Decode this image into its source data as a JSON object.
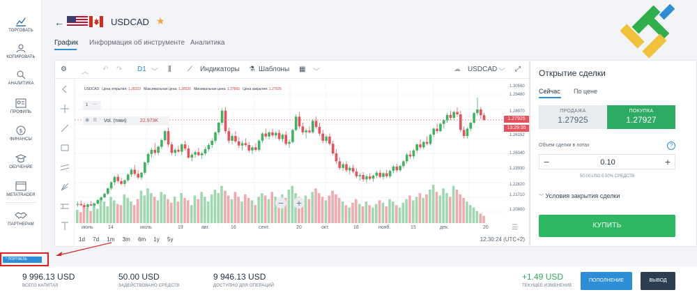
{
  "sidebar": {
    "items": [
      {
        "label": "ТОРГОВАТЬ",
        "icon": "chart-icon"
      },
      {
        "label": "КОПИРОВАТЬ",
        "icon": "copy-users-icon"
      },
      {
        "label": "АНАЛИТИКА",
        "icon": "analytics-icon"
      },
      {
        "label": "ПРОФИЛЬ",
        "icon": "profile-icon"
      },
      {
        "label": "ФИНАНСЫ",
        "icon": "dollar-icon"
      },
      {
        "label": "ОБУЧЕНИЕ",
        "icon": "graduation-icon"
      },
      {
        "label": "METATRADER",
        "icon": "window-icon"
      },
      {
        "label": "ПАРТНЕРАМ",
        "icon": "handshake-icon"
      }
    ]
  },
  "header": {
    "symbol": "USDCAD",
    "tabs": [
      "График",
      "Информация об инструменте",
      "Аналитика"
    ]
  },
  "toolbar": {
    "timeframe": "D1",
    "indicators": "Индикаторы",
    "templates": "Шаблоны",
    "symbol": "USDCAD"
  },
  "chart_info": {
    "symbol": "USDCAD",
    "open_label": "Цена открытия:",
    "open": "1.28323",
    "high_label": "Максимальная цена:",
    "high": "1.28526",
    "low_label": "Минимальная цена:",
    "low": "1.27865",
    "close_label": "Цена закрытия:",
    "close": "1.27925",
    "one": "1",
    "vol_label": "Vol. (тики)",
    "vol_value": "22.973K",
    "price_box": "1.27925",
    "time_box": "13:29:35"
  },
  "periods": [
    "1d",
    "7d",
    "1m",
    "3m",
    "6m",
    "1y",
    "5y"
  ],
  "chart_time": "12:30:24 (UTC+2)",
  "chart_data": {
    "type": "candlestick",
    "y_ticks": [
      "1.30590",
      "1.29480",
      "1.28970",
      "1.27925",
      "1.26152",
      "1.25040",
      "1.23930",
      "1.22820",
      "1.21710",
      "1.20800"
    ],
    "x_ticks": [
      "июнь",
      "14",
      "июль",
      "19",
      "авг.",
      "16",
      "сент.",
      "20",
      "окт.",
      "18",
      "нояб.",
      "15",
      "дек.",
      "20"
    ],
    "ylim": [
      1.2,
      1.31
    ],
    "candles": [
      {
        "o": 1.2088,
        "h": 1.2115,
        "l": 1.2072,
        "c": 1.2095
      },
      {
        "o": 1.2095,
        "h": 1.2125,
        "l": 1.208,
        "c": 1.2085
      },
      {
        "o": 1.2085,
        "h": 1.2105,
        "l": 1.206,
        "c": 1.207
      },
      {
        "o": 1.207,
        "h": 1.2098,
        "l": 1.2058,
        "c": 1.2092
      },
      {
        "o": 1.2092,
        "h": 1.212,
        "l": 1.2078,
        "c": 1.2082
      },
      {
        "o": 1.2082,
        "h": 1.21,
        "l": 1.2068,
        "c": 1.2098
      },
      {
        "o": 1.2098,
        "h": 1.2135,
        "l": 1.209,
        "c": 1.2128
      },
      {
        "o": 1.2128,
        "h": 1.216,
        "l": 1.2115,
        "c": 1.215
      },
      {
        "o": 1.215,
        "h": 1.219,
        "l": 1.214,
        "c": 1.218
      },
      {
        "o": 1.218,
        "h": 1.223,
        "l": 1.217,
        "c": 1.2225
      },
      {
        "o": 1.2225,
        "h": 1.2285,
        "l": 1.221,
        "c": 1.2275
      },
      {
        "o": 1.2275,
        "h": 1.233,
        "l": 1.225,
        "c": 1.232
      },
      {
        "o": 1.232,
        "h": 1.2345,
        "l": 1.227,
        "c": 1.2285
      },
      {
        "o": 1.2285,
        "h": 1.231,
        "l": 1.225,
        "c": 1.2262
      },
      {
        "o": 1.2262,
        "h": 1.23,
        "l": 1.224,
        "c": 1.2292
      },
      {
        "o": 1.2292,
        "h": 1.235,
        "l": 1.228,
        "c": 1.234
      },
      {
        "o": 1.234,
        "h": 1.239,
        "l": 1.232,
        "c": 1.238
      },
      {
        "o": 1.238,
        "h": 1.242,
        "l": 1.233,
        "c": 1.2345
      },
      {
        "o": 1.2345,
        "h": 1.2375,
        "l": 1.23,
        "c": 1.2315
      },
      {
        "o": 1.2315,
        "h": 1.236,
        "l": 1.2295,
        "c": 1.2355
      },
      {
        "o": 1.2355,
        "h": 1.245,
        "l": 1.234,
        "c": 1.244
      },
      {
        "o": 1.244,
        "h": 1.252,
        "l": 1.242,
        "c": 1.251
      },
      {
        "o": 1.251,
        "h": 1.256,
        "l": 1.248,
        "c": 1.2545
      },
      {
        "o": 1.2545,
        "h": 1.26,
        "l": 1.25,
        "c": 1.252
      },
      {
        "o": 1.252,
        "h": 1.258,
        "l": 1.25,
        "c": 1.257
      },
      {
        "o": 1.257,
        "h": 1.264,
        "l": 1.255,
        "c": 1.2625
      },
      {
        "o": 1.2625,
        "h": 1.271,
        "l": 1.261,
        "c": 1.27
      },
      {
        "o": 1.27,
        "h": 1.273,
        "l": 1.257,
        "c": 1.259
      },
      {
        "o": 1.259,
        "h": 1.261,
        "l": 1.25,
        "c": 1.252
      },
      {
        "o": 1.252,
        "h": 1.256,
        "l": 1.249,
        "c": 1.2545
      },
      {
        "o": 1.2545,
        "h": 1.258,
        "l": 1.252,
        "c": 1.253
      },
      {
        "o": 1.253,
        "h": 1.26,
        "l": 1.25,
        "c": 1.259
      },
      {
        "o": 1.259,
        "h": 1.262,
        "l": 1.254,
        "c": 1.2555
      },
      {
        "o": 1.2555,
        "h": 1.258,
        "l": 1.247,
        "c": 1.248
      },
      {
        "o": 1.248,
        "h": 1.252,
        "l": 1.245,
        "c": 1.2505
      },
      {
        "o": 1.2505,
        "h": 1.254,
        "l": 1.248,
        "c": 1.2525
      },
      {
        "o": 1.2525,
        "h": 1.256,
        "l": 1.249,
        "c": 1.25
      },
      {
        "o": 1.25,
        "h": 1.253,
        "l": 1.247,
        "c": 1.2515
      },
      {
        "o": 1.2515,
        "h": 1.2565,
        "l": 1.25,
        "c": 1.255
      },
      {
        "o": 1.255,
        "h": 1.26,
        "l": 1.253,
        "c": 1.2585
      },
      {
        "o": 1.2585,
        "h": 1.264,
        "l": 1.256,
        "c": 1.262
      },
      {
        "o": 1.262,
        "h": 1.27,
        "l": 1.26,
        "c": 1.269
      },
      {
        "o": 1.269,
        "h": 1.278,
        "l": 1.267,
        "c": 1.277
      },
      {
        "o": 1.277,
        "h": 1.289,
        "l": 1.275,
        "c": 1.287
      },
      {
        "o": 1.287,
        "h": 1.29,
        "l": 1.268,
        "c": 1.27
      },
      {
        "o": 1.27,
        "h": 1.273,
        "l": 1.26,
        "c": 1.262
      },
      {
        "o": 1.262,
        "h": 1.268,
        "l": 1.259,
        "c": 1.266
      },
      {
        "o": 1.266,
        "h": 1.27,
        "l": 1.26,
        "c": 1.2615
      },
      {
        "o": 1.2615,
        "h": 1.265,
        "l": 1.256,
        "c": 1.258
      },
      {
        "o": 1.258,
        "h": 1.262,
        "l": 1.254,
        "c": 1.26
      },
      {
        "o": 1.26,
        "h": 1.264,
        "l": 1.257,
        "c": 1.2585
      },
      {
        "o": 1.2585,
        "h": 1.261,
        "l": 1.252,
        "c": 1.254
      },
      {
        "o": 1.254,
        "h": 1.258,
        "l": 1.251,
        "c": 1.2565
      },
      {
        "o": 1.2565,
        "h": 1.26,
        "l": 1.253,
        "c": 1.2545
      },
      {
        "o": 1.2545,
        "h": 1.263,
        "l": 1.253,
        "c": 1.262
      },
      {
        "o": 1.262,
        "h": 1.269,
        "l": 1.26,
        "c": 1.268
      },
      {
        "o": 1.268,
        "h": 1.272,
        "l": 1.264,
        "c": 1.2655
      },
      {
        "o": 1.2655,
        "h": 1.27,
        "l": 1.263,
        "c": 1.269
      },
      {
        "o": 1.269,
        "h": 1.272,
        "l": 1.265,
        "c": 1.2665
      },
      {
        "o": 1.2665,
        "h": 1.27,
        "l": 1.264,
        "c": 1.2685
      },
      {
        "o": 1.2685,
        "h": 1.271,
        "l": 1.262,
        "c": 1.2635
      },
      {
        "o": 1.2635,
        "h": 1.268,
        "l": 1.261,
        "c": 1.267
      },
      {
        "o": 1.267,
        "h": 1.27,
        "l": 1.258,
        "c": 1.2595
      },
      {
        "o": 1.2595,
        "h": 1.263,
        "l": 1.256,
        "c": 1.261
      },
      {
        "o": 1.261,
        "h": 1.272,
        "l": 1.26,
        "c": 1.271
      },
      {
        "o": 1.271,
        "h": 1.284,
        "l": 1.27,
        "c": 1.282
      },
      {
        "o": 1.282,
        "h": 1.286,
        "l": 1.272,
        "c": 1.274
      },
      {
        "o": 1.274,
        "h": 1.277,
        "l": 1.267,
        "c": 1.269
      },
      {
        "o": 1.269,
        "h": 1.272,
        "l": 1.264,
        "c": 1.2705
      },
      {
        "o": 1.2705,
        "h": 1.274,
        "l": 1.268,
        "c": 1.269
      },
      {
        "o": 1.269,
        "h": 1.28,
        "l": 1.268,
        "c": 1.2785
      },
      {
        "o": 1.2785,
        "h": 1.282,
        "l": 1.272,
        "c": 1.2735
      },
      {
        "o": 1.2735,
        "h": 1.277,
        "l": 1.266,
        "c": 1.268
      },
      {
        "o": 1.268,
        "h": 1.271,
        "l": 1.26,
        "c": 1.262
      },
      {
        "o": 1.262,
        "h": 1.267,
        "l": 1.26,
        "c": 1.2655
      },
      {
        "o": 1.2655,
        "h": 1.268,
        "l": 1.258,
        "c": 1.2595
      },
      {
        "o": 1.2595,
        "h": 1.262,
        "l": 1.25,
        "c": 1.2515
      },
      {
        "o": 1.2515,
        "h": 1.255,
        "l": 1.243,
        "c": 1.245
      },
      {
        "o": 1.245,
        "h": 1.248,
        "l": 1.238,
        "c": 1.2395
      },
      {
        "o": 1.2395,
        "h": 1.244,
        "l": 1.237,
        "c": 1.2425
      },
      {
        "o": 1.2425,
        "h": 1.245,
        "l": 1.236,
        "c": 1.2375
      },
      {
        "o": 1.2375,
        "h": 1.241,
        "l": 1.234,
        "c": 1.2395
      },
      {
        "o": 1.2395,
        "h": 1.242,
        "l": 1.235,
        "c": 1.2365
      },
      {
        "o": 1.2365,
        "h": 1.239,
        "l": 1.231,
        "c": 1.2325
      },
      {
        "o": 1.2325,
        "h": 1.235,
        "l": 1.229,
        "c": 1.2335
      },
      {
        "o": 1.2335,
        "h": 1.236,
        "l": 1.228,
        "c": 1.23
      },
      {
        "o": 1.23,
        "h": 1.234,
        "l": 1.227,
        "c": 1.2325
      },
      {
        "o": 1.2325,
        "h": 1.235,
        "l": 1.229,
        "c": 1.2305
      },
      {
        "o": 1.2305,
        "h": 1.234,
        "l": 1.228,
        "c": 1.233
      },
      {
        "o": 1.233,
        "h": 1.237,
        "l": 1.231,
        "c": 1.2355
      },
      {
        "o": 1.2355,
        "h": 1.238,
        "l": 1.231,
        "c": 1.232
      },
      {
        "o": 1.232,
        "h": 1.236,
        "l": 1.23,
        "c": 1.235
      },
      {
        "o": 1.235,
        "h": 1.238,
        "l": 1.231,
        "c": 1.2325
      },
      {
        "o": 1.2325,
        "h": 1.238,
        "l": 1.231,
        "c": 1.237
      },
      {
        "o": 1.237,
        "h": 1.242,
        "l": 1.235,
        "c": 1.2405
      },
      {
        "o": 1.2405,
        "h": 1.243,
        "l": 1.236,
        "c": 1.2375
      },
      {
        "o": 1.2375,
        "h": 1.242,
        "l": 1.236,
        "c": 1.241
      },
      {
        "o": 1.241,
        "h": 1.246,
        "l": 1.239,
        "c": 1.245
      },
      {
        "o": 1.245,
        "h": 1.252,
        "l": 1.243,
        "c": 1.2505
      },
      {
        "o": 1.2505,
        "h": 1.254,
        "l": 1.247,
        "c": 1.249
      },
      {
        "o": 1.249,
        "h": 1.255,
        "l": 1.247,
        "c": 1.254
      },
      {
        "o": 1.254,
        "h": 1.26,
        "l": 1.252,
        "c": 1.259
      },
      {
        "o": 1.259,
        "h": 1.263,
        "l": 1.255,
        "c": 1.2565
      },
      {
        "o": 1.2565,
        "h": 1.262,
        "l": 1.255,
        "c": 1.261
      },
      {
        "o": 1.261,
        "h": 1.266,
        "l": 1.258,
        "c": 1.2595
      },
      {
        "o": 1.2595,
        "h": 1.268,
        "l": 1.258,
        "c": 1.267
      },
      {
        "o": 1.267,
        "h": 1.273,
        "l": 1.265,
        "c": 1.272
      },
      {
        "o": 1.272,
        "h": 1.276,
        "l": 1.268,
        "c": 1.27
      },
      {
        "o": 1.27,
        "h": 1.277,
        "l": 1.269,
        "c": 1.276
      },
      {
        "o": 1.276,
        "h": 1.28,
        "l": 1.272,
        "c": 1.279
      },
      {
        "o": 1.279,
        "h": 1.285,
        "l": 1.277,
        "c": 1.2835
      },
      {
        "o": 1.2835,
        "h": 1.287,
        "l": 1.279,
        "c": 1.281
      },
      {
        "o": 1.281,
        "h": 1.287,
        "l": 1.279,
        "c": 1.286
      },
      {
        "o": 1.286,
        "h": 1.29,
        "l": 1.282,
        "c": 1.284
      },
      {
        "o": 1.284,
        "h": 1.287,
        "l": 1.269,
        "c": 1.271
      },
      {
        "o": 1.271,
        "h": 1.274,
        "l": 1.264,
        "c": 1.266
      },
      {
        "o": 1.266,
        "h": 1.273,
        "l": 1.264,
        "c": 1.272
      },
      {
        "o": 1.272,
        "h": 1.278,
        "l": 1.27,
        "c": 1.277
      },
      {
        "o": 1.277,
        "h": 1.286,
        "l": 1.276,
        "c": 1.285
      },
      {
        "o": 1.285,
        "h": 1.298,
        "l": 1.283,
        "c": 1.288
      },
      {
        "o": 1.288,
        "h": 1.29,
        "l": 1.28,
        "c": 1.2832
      },
      {
        "o": 1.2832,
        "h": 1.2853,
        "l": 1.2787,
        "c": 1.2793
      }
    ],
    "volume": [
      22,
      18,
      30,
      26,
      20,
      34,
      24,
      40,
      36,
      28,
      44,
      38,
      32,
      30,
      48,
      42,
      36,
      30,
      40,
      54,
      46,
      58,
      50,
      44,
      38,
      52,
      48,
      40,
      34,
      44,
      36,
      50,
      42,
      38,
      30,
      46,
      40,
      52,
      44,
      36,
      48,
      56,
      50,
      62,
      54,
      46,
      40,
      52,
      44,
      36,
      48,
      42,
      38,
      30,
      44,
      50,
      46,
      40,
      52,
      44,
      36,
      48,
      42,
      56,
      62,
      50,
      44,
      38,
      46,
      40,
      52,
      58,
      50,
      44,
      38,
      46,
      54,
      48,
      42,
      36,
      30,
      26,
      34,
      40,
      32,
      28,
      36,
      30,
      26,
      32,
      38,
      34,
      28,
      40,
      36,
      30,
      26,
      34,
      40,
      46,
      38,
      44,
      50,
      42,
      48,
      56,
      64,
      52,
      46,
      58,
      50,
      44,
      62,
      56,
      48,
      42,
      36,
      30,
      26,
      20,
      16,
      12
    ]
  },
  "trade": {
    "title": "Открытие сделки",
    "tab_now": "Сейчас",
    "tab_price": "По цене",
    "sell_label": "ПРОДАЖА",
    "sell_price": "1.27925",
    "buy_label": "ПОКУПКА",
    "buy_price": "1.27927",
    "volume_label": "Объем сделки в лотах",
    "volume_value": "0.10",
    "margin_text": "50.00 USD   0.50% СРЕДСТВ",
    "close_conditions": "Условия закрытия сделки",
    "buy_button": "КУПИТЬ"
  },
  "portfolio_label": "ПОРТФЕЛЬ",
  "footer": {
    "total_value": "9 996.13 USD",
    "total_label": "ВСЕГО КАПИТАЛ",
    "used_value": "50.00 USD",
    "used_label": "ЗАДЕЙСТВОВАНО СРЕДСТВ",
    "avail_value": "9 946.13 USD",
    "avail_label": "ДОСТУПНО ДЛЯ ОПЕРАЦИЙ",
    "change_value": "+1.49 USD",
    "change_label": "ТЕКУЩЕЕ ИЗМЕНЕНИЕ",
    "deposit": "ПОПОЛНЕНИЕ",
    "withdraw": "ВЫВОД"
  },
  "colors": {
    "bull": "#3fb35f",
    "bear": "#e8505b",
    "accent": "#2d8dd6",
    "buy": "#2eb864"
  }
}
